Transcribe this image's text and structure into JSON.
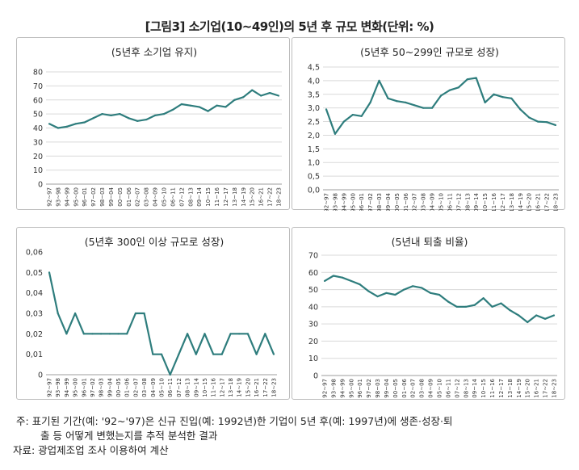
{
  "figure": {
    "title": "[그림3] 소기업(10~49인)의 5년 후 규모 변화(단위: %)"
  },
  "notes": {
    "line1": "주: 표기된 기간(예: '92~'97)은 신규 진입(예: 1992년)한 기업이 5년 후(예: 1997년)에 생존·성장·퇴",
    "line2": "출 등 어떻게 변했는지를 추적 분석한 결과",
    "source": "자료: 광업제조업 조사 이용하여 계산"
  },
  "style": {
    "line_color": "#2e7d7d",
    "grid_color": "#d9d9d9"
  },
  "chart_data": [
    {
      "type": "line",
      "title": "(5년후 소기업 유지)",
      "categories": [
        "92~97",
        "93~98",
        "94~99",
        "95~00",
        "96~01",
        "97~02",
        "98~03",
        "99~04",
        "00~05",
        "01~06",
        "02~07",
        "03~08",
        "04~09",
        "05~10",
        "06~11",
        "07~12",
        "08~13",
        "09~14",
        "10~15",
        "11~16",
        "12~17",
        "13~18",
        "14~19",
        "15~20",
        "16~21",
        "17~22",
        "18~23"
      ],
      "values": [
        43,
        40,
        41,
        43,
        44,
        47,
        50,
        49,
        50,
        47,
        45,
        46,
        49,
        50,
        53,
        57,
        56,
        55,
        52,
        56,
        55,
        60,
        62,
        67,
        63,
        65,
        63
      ],
      "ylim": [
        0,
        80
      ],
      "yticks": [
        "0",
        "10",
        "20",
        "30",
        "40",
        "50",
        "60",
        "70",
        "80"
      ],
      "grid": true
    },
    {
      "type": "line",
      "title": "(5년후 50~299인 규모로 성장)",
      "categories": [
        "92~97",
        "93~98",
        "94~99",
        "95~00",
        "96~01",
        "97~02",
        "98~03",
        "99~04",
        "00~05",
        "01~06",
        "02~07",
        "03~08",
        "04~09",
        "05~10",
        "06~11",
        "07~12",
        "08~13",
        "09~14",
        "10~15",
        "11~16",
        "12~17",
        "13~18",
        "14~19",
        "15~20",
        "16~21",
        "17~22",
        "18~23"
      ],
      "values": [
        2.95,
        2.05,
        2.5,
        2.75,
        2.7,
        3.2,
        4.0,
        3.35,
        3.25,
        3.2,
        3.1,
        3.0,
        3.0,
        3.45,
        3.65,
        3.75,
        4.05,
        4.1,
        3.2,
        3.5,
        3.4,
        3.35,
        2.95,
        2.65,
        2.5,
        2.48,
        2.37
      ],
      "ylim": [
        0,
        4.5
      ],
      "yticks": [
        "0,0",
        "0,5",
        "1,0",
        "1,5",
        "2,0",
        "2,5",
        "3,0",
        "3,5",
        "4,0",
        "4,5"
      ],
      "grid": true
    },
    {
      "type": "line",
      "title": "(5년후 300인 이상 규모로 성장)",
      "categories": [
        "92~97",
        "93~98",
        "94~99",
        "95~00",
        "96~01",
        "97~02",
        "98~03",
        "99~04",
        "00~05",
        "01~06",
        "02~07",
        "03~08",
        "04~09",
        "05~10",
        "06~11",
        "07~12",
        "08~13",
        "09~14",
        "10~15",
        "11~16",
        "12~17",
        "13~18",
        "14~19",
        "15~20",
        "16~21",
        "17~22",
        "18~23"
      ],
      "values": [
        0.05,
        0.03,
        0.02,
        0.03,
        0.02,
        0.02,
        0.02,
        0.02,
        0.02,
        0.02,
        0.03,
        0.03,
        0.01,
        0.01,
        0.0,
        0.01,
        0.02,
        0.01,
        0.02,
        0.01,
        0.01,
        0.02,
        0.02,
        0.02,
        0.01,
        0.02,
        0.01
      ],
      "ylim": [
        0,
        0.06
      ],
      "yticks": [
        "0",
        "0,01",
        "0,02",
        "0,03",
        "0,04",
        "0,05",
        "0,06"
      ],
      "grid": false
    },
    {
      "type": "line",
      "title": "(5년내 퇴출 비율)",
      "categories": [
        "92~97",
        "93~98",
        "94~99",
        "95~00",
        "96~01",
        "97~02",
        "98~03",
        "99~04",
        "00~05",
        "01~06",
        "02~07",
        "03~08",
        "04~09",
        "05~10",
        "06~11",
        "07~12",
        "08~13",
        "09~14",
        "10~15",
        "11~16",
        "12~17",
        "13~18",
        "14~19",
        "15~20",
        "16~21",
        "17~22",
        "18~23"
      ],
      "values": [
        55,
        58,
        57,
        55,
        53,
        49,
        46,
        48,
        47,
        50,
        52,
        51,
        48,
        47,
        43,
        40,
        40,
        41,
        45,
        40,
        42,
        38,
        35,
        31,
        35,
        33,
        35
      ],
      "ylim": [
        0,
        70
      ],
      "yticks": [
        "0",
        "10",
        "20",
        "30",
        "40",
        "50",
        "60",
        "70"
      ],
      "grid": true
    }
  ]
}
